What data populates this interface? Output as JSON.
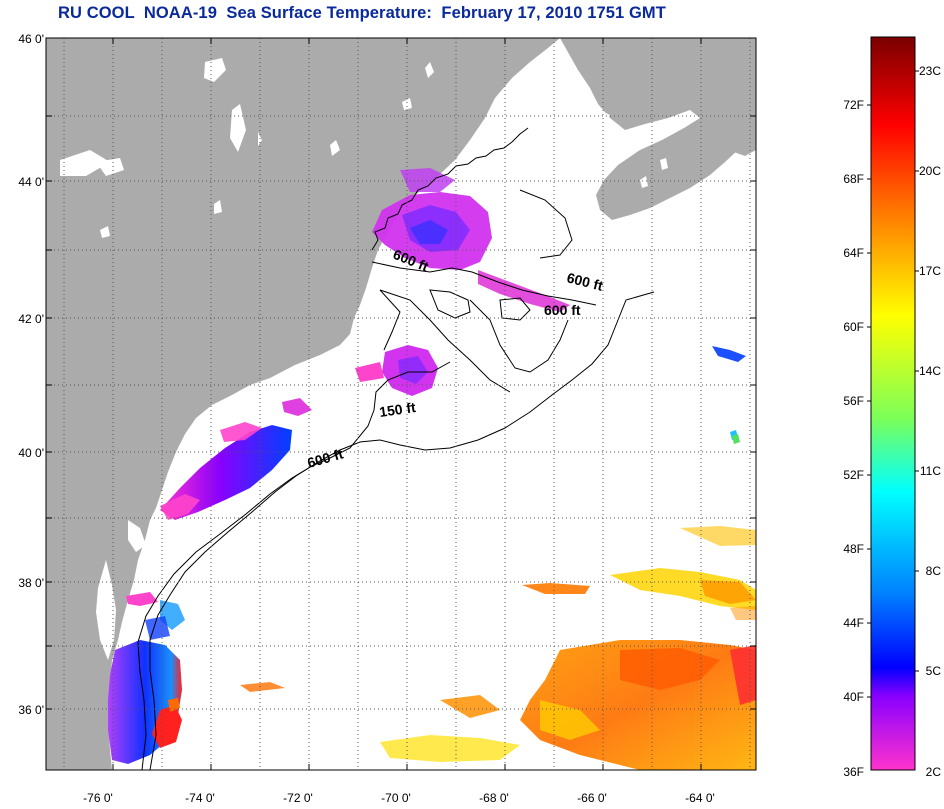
{
  "title": "RU COOL  NOAA-19  Sea Surface Temperature:  February 17, 2010 1751 GMT",
  "map": {
    "lat_labels": [
      "46 0'",
      "44 0'",
      "42 0'",
      "40 0'",
      "38 0'",
      "36 0'"
    ],
    "lon_labels": [
      "-76 0'",
      "-74 0'",
      "-72 0'",
      "-70 0'",
      "-68 0'",
      "-66 0'",
      "-64 0'"
    ],
    "depth_labels": [
      "600 ft",
      "600 ft",
      "600 ft",
      "150 ft",
      "600 ft"
    ],
    "colors": {
      "land": "#ababab",
      "ocean": "#ffffff",
      "graticule": "#555555"
    }
  },
  "colorbar": {
    "fahrenheit_labels": [
      "72F",
      "68F",
      "64F",
      "60F",
      "56F",
      "52F",
      "48F",
      "44F",
      "40F",
      "36F"
    ],
    "celsius_labels": [
      "23C",
      "20C",
      "17C",
      "14C",
      "11C",
      "8C",
      "5C",
      "2C"
    ],
    "gradient_colors": [
      "#800000",
      "#ff0000",
      "#ff8000",
      "#ffff00",
      "#80ff40",
      "#00ffff",
      "#0080ff",
      "#0000ff",
      "#8000ff",
      "#ff40ff"
    ]
  }
}
